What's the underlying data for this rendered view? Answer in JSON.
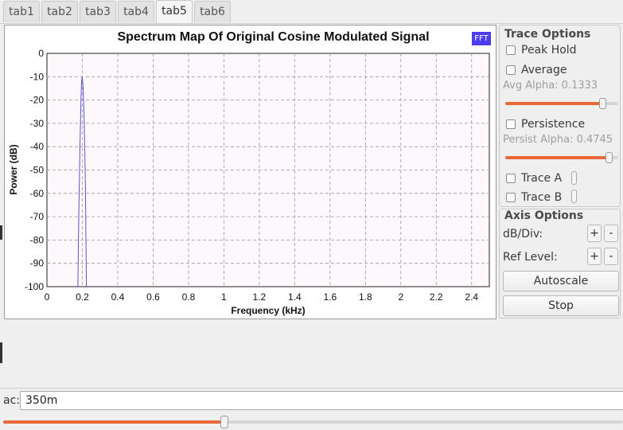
{
  "tabs": [
    {
      "label": "tab1",
      "active": false
    },
    {
      "label": "tab2",
      "active": false
    },
    {
      "label": "tab3",
      "active": false
    },
    {
      "label": "tab4",
      "active": false
    },
    {
      "label": "tab5",
      "active": true
    },
    {
      "label": "tab6",
      "active": false
    }
  ],
  "plot": {
    "title": "Spectrum Map Of  Original Cosine Modulated Signal",
    "badge": "FFT",
    "line_color": "#5a55c8"
  },
  "chart_data": {
    "type": "line",
    "title": "Spectrum Map Of  Original Cosine Modulated Signal",
    "xlabel": "Frequency (kHz)",
    "ylabel": "Power (dB)",
    "xlim": [
      0,
      2.5
    ],
    "ylim": [
      -100,
      0
    ],
    "x_ticks": [
      "0",
      "0.2",
      "0.4",
      "0.6",
      "0.8",
      "1",
      "1.2",
      "1.4",
      "1.6",
      "1.8",
      "2",
      "2.2",
      "2.4"
    ],
    "y_ticks": [
      "0",
      "-10",
      "-20",
      "-30",
      "-40",
      "-50",
      "-60",
      "-70",
      "-80",
      "-90",
      "-100"
    ],
    "grid": true,
    "series": [
      {
        "x": [
          0.175,
          0.178,
          0.181,
          0.184,
          0.187,
          0.19,
          0.193,
          0.196,
          0.199,
          0.202,
          0.205,
          0.208,
          0.211,
          0.214,
          0.217,
          0.22,
          0.223
        ],
        "y": [
          -100,
          -80,
          -64,
          -52,
          -38,
          -28,
          -18,
          -12,
          -10,
          -12,
          -16,
          -22,
          -30,
          -42,
          -56,
          -75,
          -100
        ]
      }
    ]
  },
  "trace_options": {
    "title": "Trace Options",
    "peak_hold": "Peak Hold",
    "average": "Average",
    "avg_alpha": "Avg Alpha: 0.1333",
    "avg_alpha_value": 0.1333,
    "persistence": "Persistence",
    "persist_alpha": "Persist Alpha: 0.4745",
    "persist_alpha_value": 0.4745,
    "trace_a": "Trace A",
    "trace_b": "Trace B"
  },
  "axis_options": {
    "title": "Axis Options",
    "db_div": "dB/Div:",
    "ref_level": "Ref Level:",
    "plus": "+",
    "minus": "-"
  },
  "buttons": {
    "autoscale": "Autoscale",
    "stop": "Stop"
  },
  "bottom": {
    "label": "ac:",
    "value": "350m",
    "slider_fraction": 0.355
  },
  "colors": {
    "accent": "#e8683a",
    "badge": "#4b3cf0"
  }
}
